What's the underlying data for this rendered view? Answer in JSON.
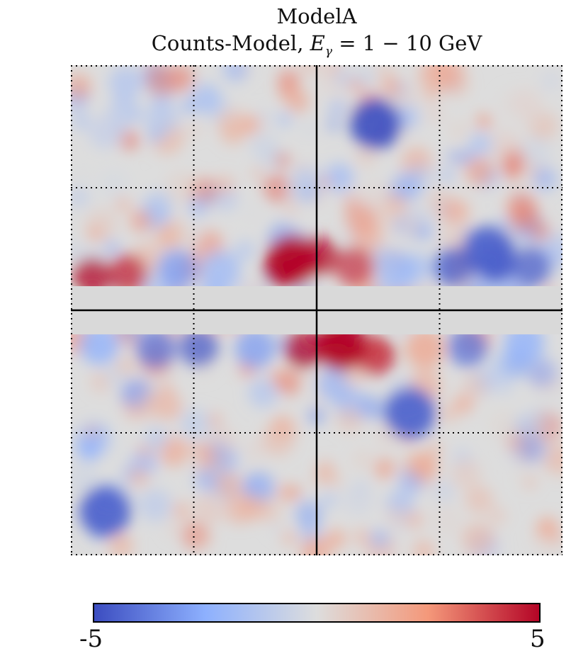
{
  "chart_data": {
    "type": "heatmap",
    "title": "ModelA",
    "subtitle_parts": {
      "prefix": "Counts-Model, ",
      "symbol": "E",
      "subscript": "γ",
      "suffix": " = 1 − 10 GeV"
    },
    "colormap": "coolwarm",
    "colorbar": {
      "min": -5,
      "max": 5,
      "min_label": "-5",
      "max_label": "5"
    },
    "colors": {
      "low": "#3b4cc0",
      "mid": "#dddddd",
      "high": "#b40426",
      "masked": "#d9d9d9"
    },
    "grid": {
      "style": "dotted",
      "columns": 4,
      "rows": 4
    },
    "center_lines": true,
    "masked_band": true,
    "features": [
      {
        "name": "negative blob",
        "x": 0.62,
        "y": 0.12,
        "value": -5
      },
      {
        "name": "positive cluster",
        "x": 0.45,
        "y": 0.4,
        "value": 5
      },
      {
        "name": "negative region",
        "x": 0.85,
        "y": 0.38,
        "value": -4.5
      },
      {
        "name": "positive cluster",
        "x": 0.55,
        "y": 0.57,
        "value": 5
      },
      {
        "name": "negative blob",
        "x": 0.69,
        "y": 0.71,
        "value": -4.5
      },
      {
        "name": "negative blob",
        "x": 0.07,
        "y": 0.91,
        "value": -4.5
      }
    ]
  }
}
